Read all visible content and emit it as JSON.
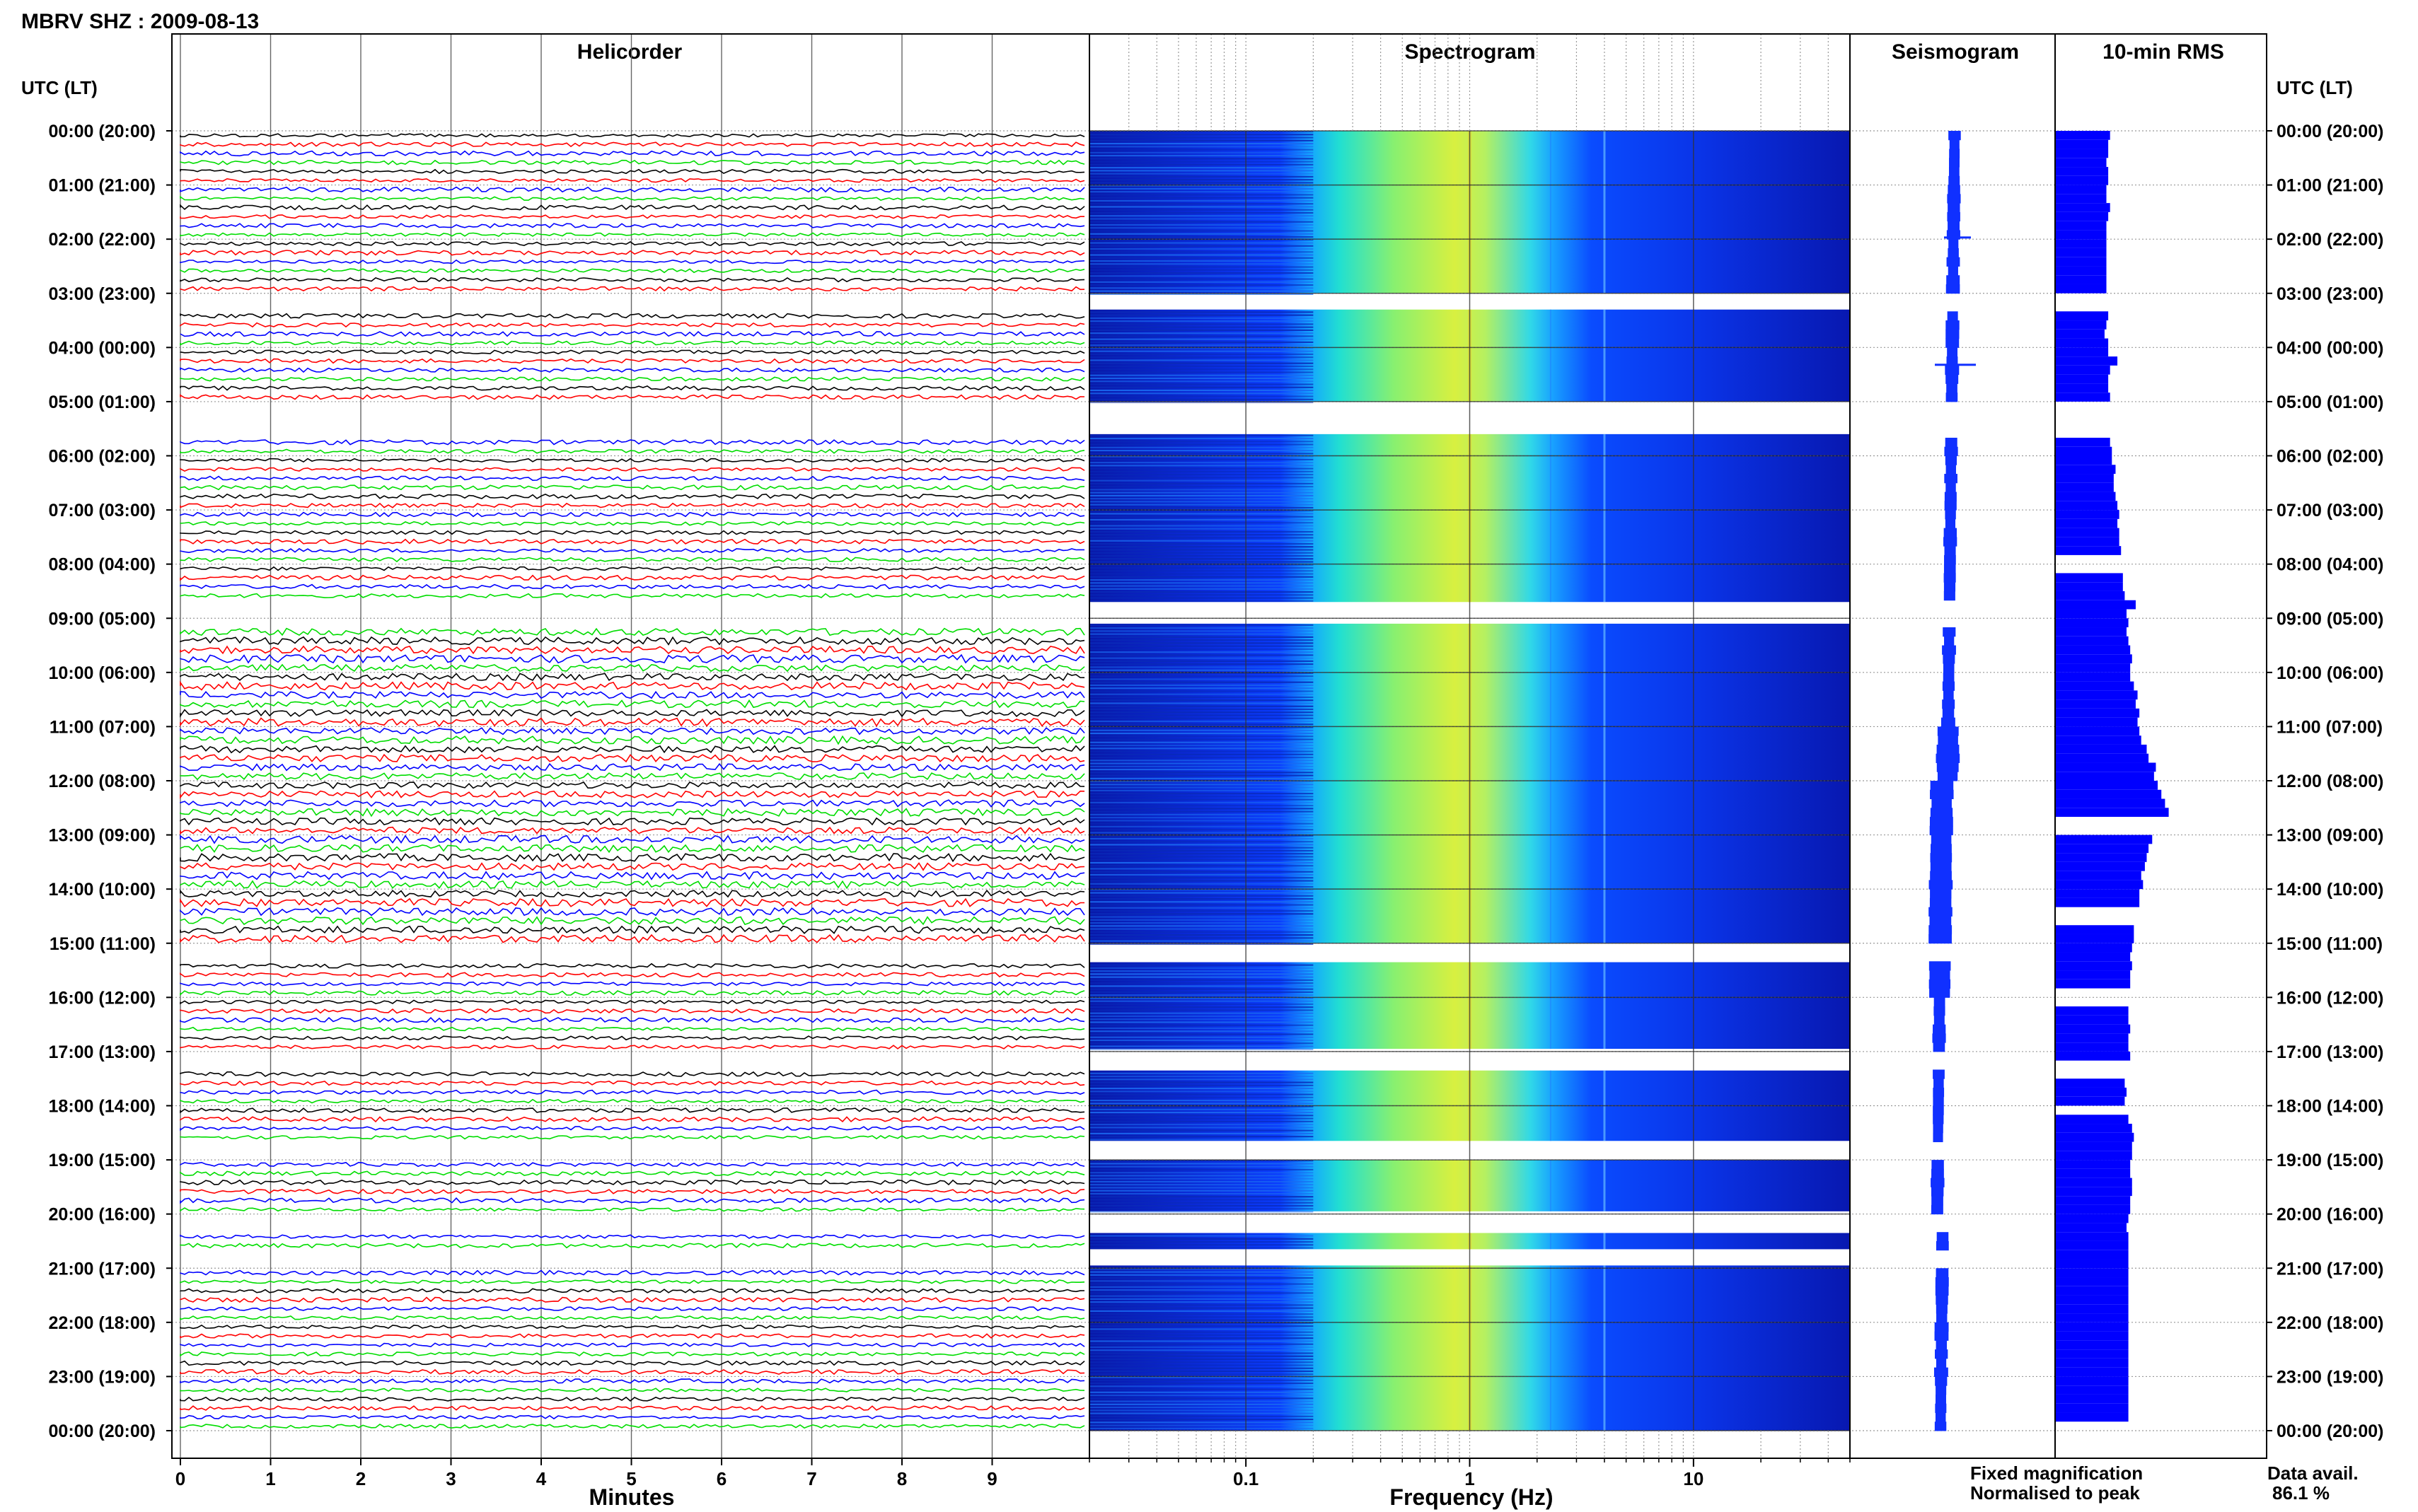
{
  "title": "MBRV SHZ : 2009-08-13",
  "panels": {
    "helicorder": "Helicorder",
    "spectrogram": "Spectrogram",
    "seismogram": "Seismogram",
    "rms": "10-min RMS"
  },
  "time_header_left": "UTC (LT)",
  "time_header_right": "UTC (LT)",
  "time_labels": [
    "00:00 (20:00)",
    "01:00 (21:00)",
    "02:00 (22:00)",
    "03:00 (23:00)",
    "04:00 (00:00)",
    "05:00 (01:00)",
    "06:00 (02:00)",
    "07:00 (03:00)",
    "08:00 (04:00)",
    "09:00 (05:00)",
    "10:00 (06:00)",
    "11:00 (07:00)",
    "12:00 (08:00)",
    "13:00 (09:00)",
    "14:00 (10:00)",
    "15:00 (11:00)",
    "16:00 (12:00)",
    "17:00 (13:00)",
    "18:00 (14:00)",
    "19:00 (15:00)",
    "20:00 (16:00)",
    "21:00 (17:00)",
    "22:00 (18:00)",
    "23:00 (19:00)",
    "00:00 (20:00)"
  ],
  "minutes_ticks": [
    "0",
    "1",
    "2",
    "3",
    "4",
    "5",
    "6",
    "7",
    "8",
    "9"
  ],
  "freq_ticks": [
    "0.1",
    "1",
    "10"
  ],
  "xlabel_helicorder": "Minutes",
  "xlabel_spectrogram": "Frequency (Hz)",
  "legend": {
    "fixed": "Fixed magnification",
    "normalised": "Normalised to peak",
    "fixed_color": "#1010ff",
    "normalised_color": "#ff1010"
  },
  "availability": {
    "label": "Data avail.",
    "value": "86.1 %"
  },
  "colors": {
    "trace_cycle": [
      "#000000",
      "#ff0000",
      "#0000ff",
      "#00dd00"
    ],
    "rms_bar": "#0000ff"
  },
  "chart_data": {
    "type": "heatmap",
    "station": "MBRV",
    "channel": "SHZ",
    "date": "2009-08-13",
    "helicorder_xlim": [
      0,
      10
    ],
    "spectrogram_xlim": [
      0.02,
      50
    ],
    "spectrogram_scale": "log",
    "data_gaps_utc_hours": [
      [
        3.0,
        3.3
      ],
      [
        5.0,
        5.6
      ],
      [
        8.7,
        9.1
      ],
      [
        15.0,
        15.35
      ],
      [
        16.95,
        17.35
      ],
      [
        18.65,
        19.0
      ],
      [
        19.95,
        20.35
      ],
      [
        20.65,
        20.95
      ]
    ],
    "rms_10min_relative": [
      0.3,
      0.29,
      0.29,
      0.28,
      0.29,
      0.29,
      0.28,
      0.28,
      0.3,
      0.29,
      0.28,
      0.28,
      0.28,
      0.28,
      0.28,
      0.28,
      0.28,
      0.28,
      null,
      null,
      0.29,
      0.28,
      0.27,
      0.29,
      0.29,
      0.34,
      0.3,
      0.29,
      0.29,
      0.3,
      null,
      null,
      null,
      null,
      0.3,
      0.31,
      0.31,
      0.33,
      0.32,
      0.32,
      0.33,
      0.34,
      0.35,
      0.34,
      0.35,
      0.35,
      0.36,
      null,
      null,
      0.37,
      0.37,
      0.38,
      0.44,
      0.39,
      0.4,
      0.39,
      0.4,
      0.41,
      0.42,
      0.41,
      0.41,
      0.43,
      0.45,
      0.44,
      0.46,
      0.45,
      0.46,
      0.47,
      0.5,
      0.51,
      0.55,
      0.54,
      0.56,
      0.58,
      0.6,
      0.62,
      null,
      null,
      0.53,
      0.51,
      0.5,
      0.49,
      0.47,
      0.48,
      0.46,
      0.46,
      null,
      null,
      0.43,
      0.43,
      0.42,
      0.41,
      0.42,
      0.41,
      0.41,
      null,
      null,
      0.4,
      0.4,
      0.41,
      0.4,
      0.4,
      0.41,
      null,
      null,
      0.38,
      0.39,
      0.38,
      null,
      0.4,
      0.42,
      0.43,
      0.42,
      0.42,
      0.41,
      0.41,
      0.42,
      0.42,
      0.41,
      0.41,
      0.4,
      0.39,
      0.4,
      0.4,
      0.4,
      0.4,
      0.4,
      0.4,
      0.4,
      0.4,
      0.4,
      0.4,
      0.4,
      0.4,
      0.4,
      0.4,
      0.4,
      0.4,
      0.4,
      0.4,
      0.4,
      0.4,
      0.4
    ]
  }
}
